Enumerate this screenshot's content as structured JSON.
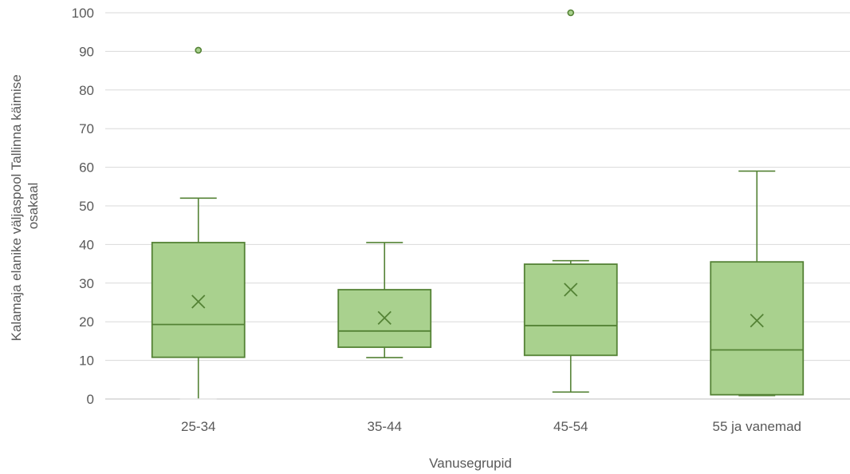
{
  "chart_data": {
    "type": "box",
    "title": "",
    "xlabel": "Vanusegrupid",
    "ylabel": "Kalamaja elanike väljaspool Tallinna käimise osakaal",
    "ylabel_lines": [
      "Kalamaja elanike väljaspool Tallinna käimise",
      "osakaal"
    ],
    "ylim": [
      0,
      100
    ],
    "yticks": [
      "0",
      "10",
      "20",
      "30",
      "40",
      "50",
      "60",
      "70",
      "80",
      "90",
      "100"
    ],
    "grid": true,
    "categories": [
      "25-34",
      "35-44",
      "45-54",
      "55 ja vanemad"
    ],
    "boxes": [
      {
        "category": "25-34",
        "min": 0,
        "q1": 10.8,
        "median": 19.3,
        "q3": 40.5,
        "max": 52,
        "mean": 25.2,
        "outliers": [
          90.3
        ]
      },
      {
        "category": "35-44",
        "min": 10.7,
        "q1": 13.4,
        "median": 17.6,
        "q3": 28.3,
        "max": 40.5,
        "mean": 21,
        "outliers": []
      },
      {
        "category": "45-54",
        "min": 1.8,
        "q1": 11.3,
        "median": 19,
        "q3": 34.9,
        "max": 35.8,
        "mean": 28.3,
        "outliers": [
          100
        ]
      },
      {
        "category": "55 ja vanemad",
        "min": 0.9,
        "q1": 1.1,
        "median": 12.7,
        "q3": 35.5,
        "max": 59,
        "mean": 20.3,
        "outliers": []
      }
    ],
    "colors": {
      "fill": "#a9d18e",
      "stroke": "#548235",
      "grid": "#d9d9d9",
      "axis": "#bfbfbf",
      "text": "#595959"
    }
  }
}
